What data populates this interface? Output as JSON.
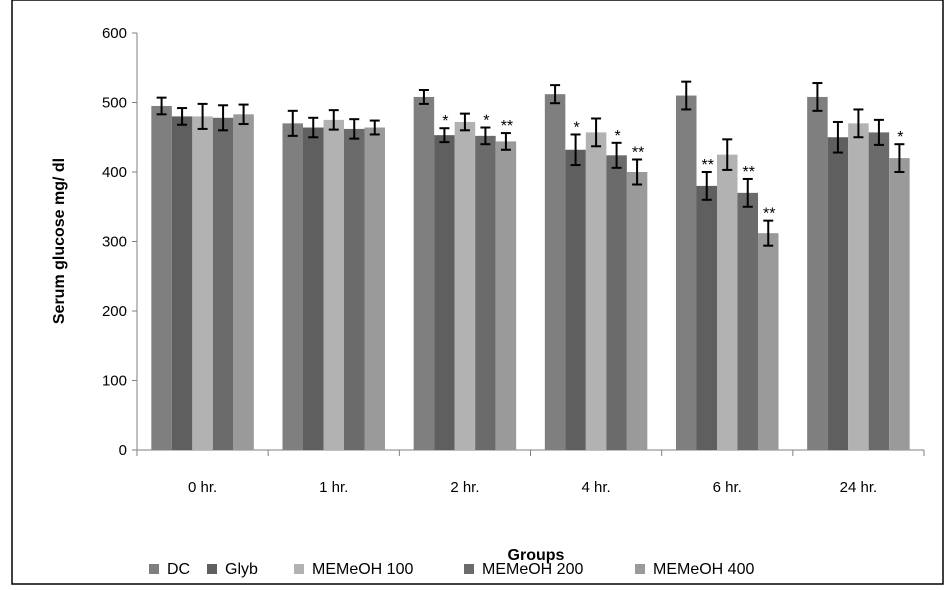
{
  "chart_data": {
    "type": "bar",
    "title": "",
    "xlabel": "Groups",
    "ylabel": "Serum glucose mg/ dl",
    "ylim": [
      0,
      600
    ],
    "yticks": [
      "0",
      "100",
      "200",
      "300",
      "400",
      "500",
      "600"
    ],
    "categories": [
      "0 hr.",
      "1 hr.",
      "2 hr.",
      "4 hr.",
      "6 hr.",
      "24 hr."
    ],
    "grid": false,
    "legend_position": "bottom",
    "series": [
      {
        "name": "DC",
        "color": "#7f7f7f",
        "values": [
          495,
          470,
          508,
          512,
          510,
          508
        ],
        "errors": [
          12,
          18,
          10,
          13,
          20,
          20
        ],
        "annotations": [
          "",
          "",
          "",
          "",
          "",
          ""
        ]
      },
      {
        "name": "Glyb",
        "color": "#5f5f5f",
        "values": [
          480,
          464,
          453,
          432,
          380,
          450
        ],
        "errors": [
          12,
          14,
          10,
          22,
          20,
          22
        ],
        "annotations": [
          "",
          "",
          "*",
          "*",
          "**",
          ""
        ]
      },
      {
        "name": "MEMeOH 100",
        "color": "#b2b2b2",
        "values": [
          480,
          475,
          472,
          457,
          425,
          470
        ],
        "errors": [
          18,
          14,
          12,
          20,
          22,
          20
        ],
        "annotations": [
          "",
          "",
          "",
          "",
          "",
          ""
        ]
      },
      {
        "name": "MEMeOH 200",
        "color": "#6b6b6b",
        "values": [
          478,
          462,
          452,
          424,
          370,
          457
        ],
        "errors": [
          18,
          14,
          12,
          18,
          20,
          18
        ],
        "annotations": [
          "",
          "",
          "*",
          "*",
          "**",
          ""
        ]
      },
      {
        "name": "MEMeOH 400",
        "color": "#9a9a9a",
        "values": [
          483,
          464,
          444,
          400,
          312,
          420
        ],
        "errors": [
          14,
          10,
          12,
          18,
          18,
          20
        ],
        "annotations": [
          "",
          "",
          "**",
          "**",
          "**",
          "*"
        ]
      }
    ]
  }
}
